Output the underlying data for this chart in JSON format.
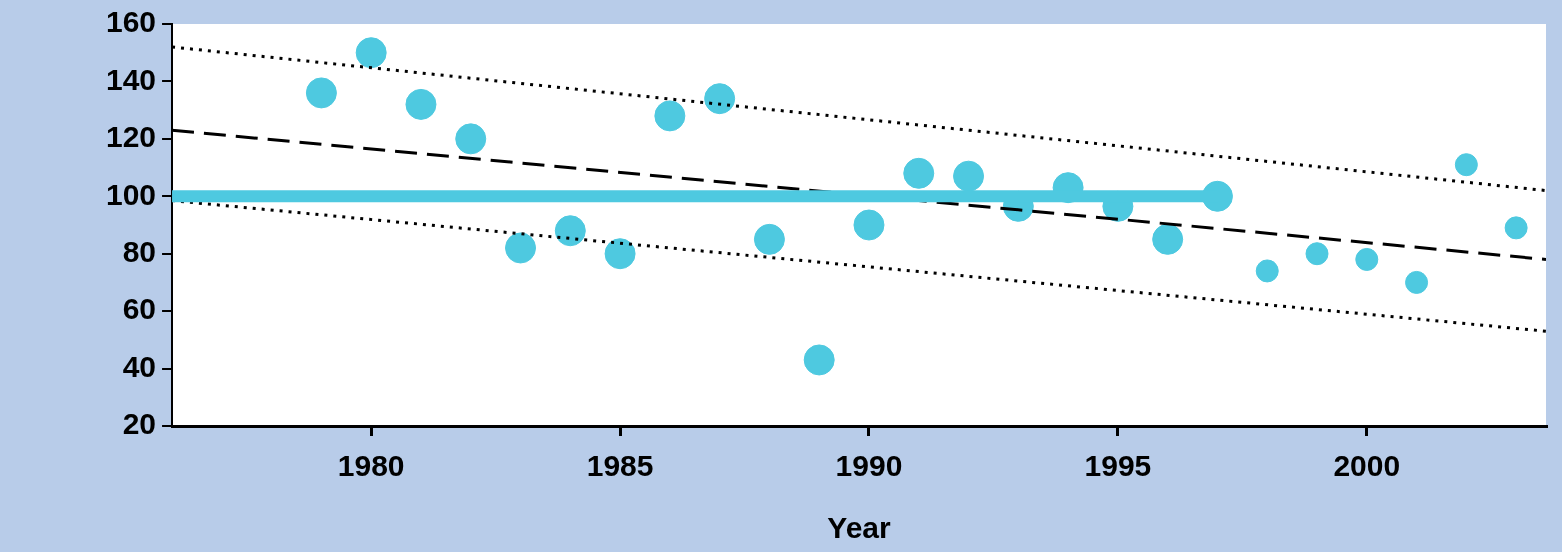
{
  "chart_data": {
    "type": "scatter",
    "xlabel": "Year",
    "xlim": [
      1976,
      2003.6
    ],
    "xticks": [
      1980,
      1985,
      1990,
      1995,
      2000
    ],
    "ylim": [
      20,
      160
    ],
    "yticks": [
      20,
      40,
      60,
      80,
      100,
      120,
      140,
      160
    ],
    "grid": false,
    "legend": false,
    "series": [
      {
        "color": "#4ec9e0",
        "marker": "circle",
        "x": [
          1979,
          1980,
          1981,
          1982,
          1983,
          1984,
          1985,
          1986,
          1987,
          1988,
          1989,
          1990,
          1991,
          1992,
          1993,
          1994,
          1995,
          1996,
          1997
        ],
        "values": [
          136,
          150,
          132,
          120,
          82,
          88,
          80,
          128,
          134,
          85,
          43,
          90,
          108,
          107,
          96.5,
          103,
          96.5,
          85,
          100
        ]
      },
      {
        "color": "#4ec9e0",
        "marker": "circle",
        "x": [
          1998,
          1999,
          2000,
          2001,
          2002,
          2003
        ],
        "values": [
          74,
          80,
          78,
          70,
          111,
          89
        ]
      },
      {
        "type": "line",
        "color": "#000000",
        "line_style": "dashed",
        "marker": "none",
        "x": [
          1976,
          2003.6
        ],
        "values": [
          123,
          78
        ]
      },
      {
        "type": "line",
        "color": "#000000",
        "line_style": "dotted",
        "marker": "none",
        "x": [
          1976,
          2003.6
        ],
        "values": [
          152,
          102
        ]
      },
      {
        "type": "line",
        "color": "#000000",
        "line_style": "dotted",
        "marker": "none",
        "x": [
          1976,
          2003.6
        ],
        "values": [
          98.5,
          53
        ]
      },
      {
        "type": "line",
        "color": "#4ec9e0",
        "line_style": "solid",
        "marker": "none",
        "x": [
          1976,
          1997
        ],
        "values": [
          100,
          100
        ]
      }
    ]
  }
}
